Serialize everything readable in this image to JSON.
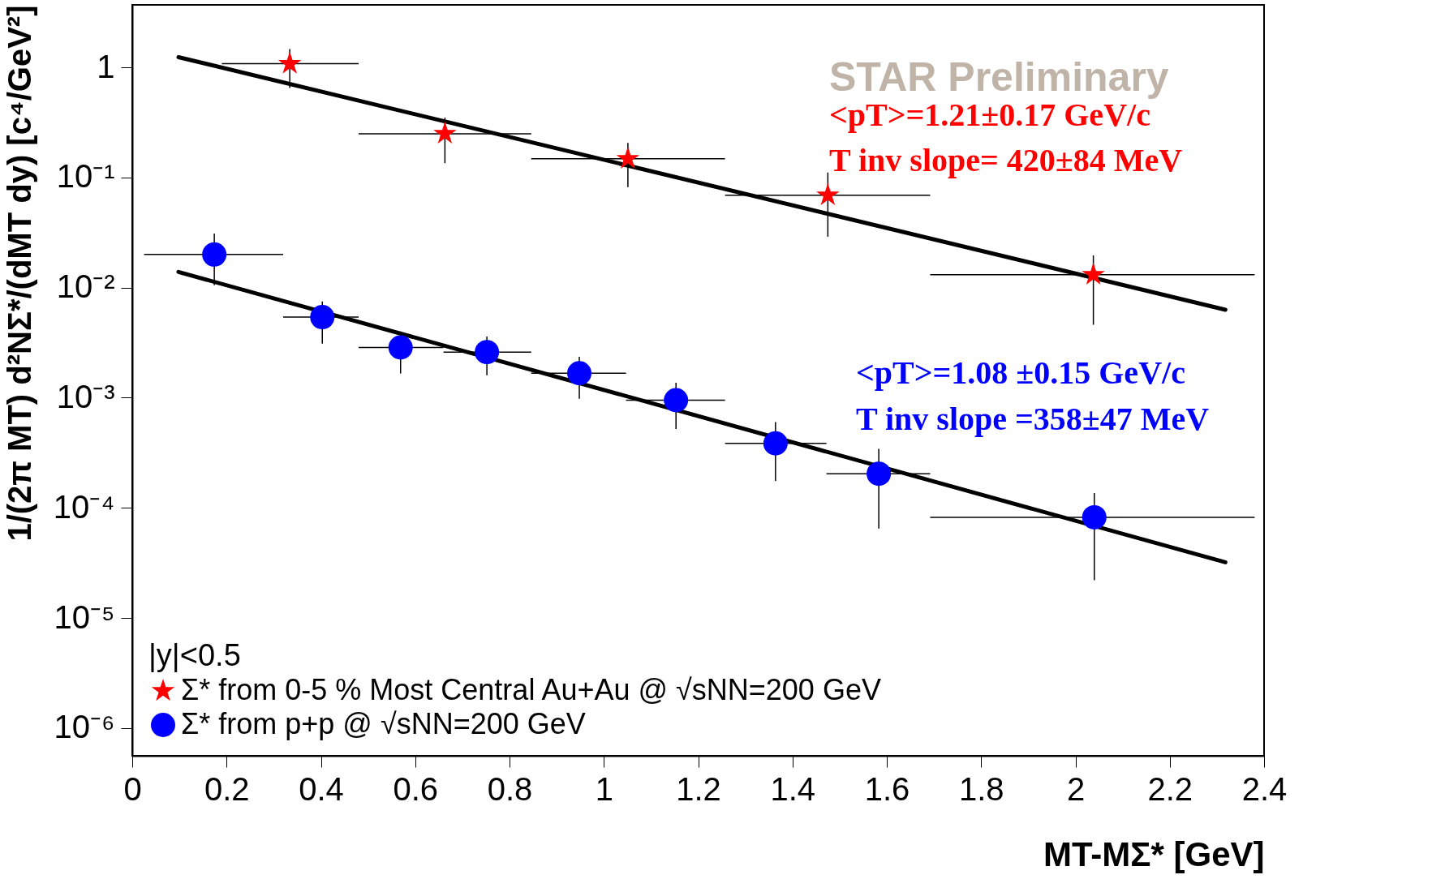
{
  "chart_data": {
    "type": "scatter",
    "xlabel": "MT-MΣ* [GeV]",
    "ylabel": "1/(2π MT) d²NΣ*/(dMT dy) [c⁴/GeV²]",
    "xlim": [
      0,
      2.4
    ],
    "ylim": [
      5.6e-07,
      3.7
    ],
    "log": "y",
    "xticks": [
      0,
      0.2,
      0.4,
      0.6,
      0.8,
      1,
      1.2,
      1.4,
      1.6,
      1.8,
      2,
      2.2,
      2.4
    ],
    "yticks": [
      {
        "value": 1e-06,
        "label": "10⁻⁶"
      },
      {
        "value": 1e-05,
        "label": "10⁻⁵"
      },
      {
        "value": 0.0001,
        "label": "10⁻⁴"
      },
      {
        "value": 0.001,
        "label": "10⁻³"
      },
      {
        "value": 0.01,
        "label": "10⁻²"
      },
      {
        "value": 0.1,
        "label": "10⁻¹"
      },
      {
        "value": 1,
        "label": "1"
      }
    ],
    "grid": false,
    "legend": "bottom left",
    "legend_title": "|y|<0.5",
    "series": [
      {
        "name": "Σ* from 0-5 % Most Central Au+Au @ √sNN=200 GeV",
        "marker": "star",
        "color": "#ff0000",
        "x": [
          0.334,
          0.663,
          1.051,
          1.475,
          2.038
        ],
        "values": [
          1.08,
          0.25,
          0.148,
          0.069,
          0.0131
        ],
        "errors": [
          [
            0.65,
            1.47
          ],
          [
            0.135,
            0.35
          ],
          [
            0.082,
            0.206
          ],
          [
            0.029,
            0.111
          ],
          [
            0.0046,
            0.0196
          ]
        ],
        "xerrors": [
          [
            0.19,
            0.48
          ],
          [
            0.48,
            0.846
          ],
          [
            0.846,
            1.257
          ],
          [
            1.257,
            1.692
          ],
          [
            1.692,
            2.38
          ]
        ]
      },
      {
        "name": "Σ* from p+p @ √sNN=200 GeV",
        "marker": "circle",
        "color": "#0000ff",
        "x": [
          0.174,
          0.403,
          0.569,
          0.752,
          0.948,
          1.153,
          1.364,
          1.583,
          2.04
        ],
        "values": [
          0.02,
          0.0054,
          0.00286,
          0.0026,
          0.00167,
          0.00095,
          0.000385,
          0.000204,
          8.2e-05
        ],
        "errors": [
          [
            0.0105,
            0.031
          ],
          [
            0.0031,
            0.0075
          ],
          [
            0.00166,
            0.004
          ],
          [
            0.0016,
            0.0036
          ],
          [
            0.00098,
            0.00235
          ],
          [
            0.00052,
            0.00137
          ],
          [
            0.000175,
            0.0006
          ],
          [
            6.5e-05,
            0.000343
          ],
          [
            2.2e-05,
            0.000136
          ]
        ],
        "xerrors": [
          [
            0.025,
            0.32
          ],
          [
            0.32,
            0.48
          ],
          [
            0.48,
            0.66
          ],
          [
            0.66,
            0.846
          ],
          [
            0.846,
            1.047
          ],
          [
            1.047,
            1.257
          ],
          [
            1.257,
            1.472
          ],
          [
            1.472,
            1.692
          ],
          [
            1.692,
            2.38
          ]
        ]
      },
      {
        "type": "line",
        "color": "#000000",
        "line_style": "solid",
        "x": [
          0.098,
          2.318
        ],
        "values": [
          1.24,
          0.0063
        ]
      },
      {
        "type": "line",
        "color": "#000000",
        "line_style": "solid",
        "x": [
          0.098,
          2.318
        ],
        "values": [
          0.0139,
          3.2e-05
        ]
      }
    ],
    "annotations": [
      "STAR Preliminary",
      "<pT>=1.21±0.17 GeV/c",
      "T inv slope= 420±84 MeV",
      "<pT>=1.08 ±0.15 GeV/c",
      "T inv slope =358±47 MeV"
    ]
  }
}
